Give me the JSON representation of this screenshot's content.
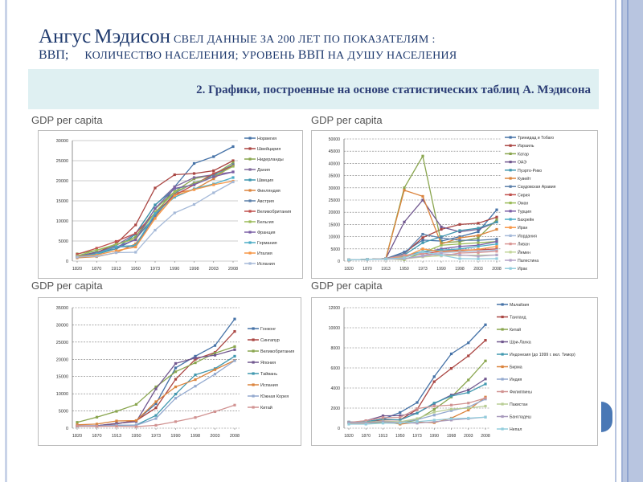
{
  "slide": {
    "title_big1": "Ангус",
    "title_big2": "Мэдисон",
    "title_rest": "свел данные за 200 лет по показателям :",
    "line2_a": "ВВП;",
    "line2_b": "количество населения; уровень",
    "line2_c": "ВВП",
    "line2_d": "на душу населения",
    "banner": "2. Графики, построенные на основе статистических таблиц А. Мэдисона"
  },
  "colors": {
    "title": "#1f3a6e",
    "banner_bg": "#dff0f2",
    "rail": "#b8c5e0",
    "accent": "#4a78b5"
  },
  "chart_data": [
    {
      "type": "line",
      "title": "GDP per capita",
      "categories": [
        "1820",
        "1870",
        "1913",
        "1950",
        "1973",
        "1990",
        "1998",
        "2003",
        "2008"
      ],
      "ylim": [
        0,
        30000
      ],
      "yticks": [
        0,
        5000,
        10000,
        15000,
        20000,
        25000,
        30000
      ],
      "legend": "right",
      "series": [
        {
          "name": "Норвегия",
          "color": "#4572A7",
          "values": [
            1100,
            2300,
            3000,
            5500,
            11200,
            18500,
            24300,
            26000,
            28500
          ]
        },
        {
          "name": "Швейцария",
          "color": "#AA4643",
          "values": [
            1300,
            2100,
            4300,
            9000,
            18200,
            21500,
            21800,
            22500,
            25000
          ]
        },
        {
          "name": "Нидерланды",
          "color": "#89A54E",
          "values": [
            1800,
            2700,
            4000,
            6000,
            13000,
            17300,
            20500,
            21500,
            24500
          ]
        },
        {
          "name": "Дания",
          "color": "#80699B",
          "values": [
            1300,
            2000,
            3900,
            6900,
            13900,
            18500,
            20800,
            21500,
            22200
          ]
        },
        {
          "name": "Швеция",
          "color": "#3D96AE",
          "values": [
            1200,
            1700,
            3100,
            6700,
            14000,
            18000,
            19000,
            21500,
            24000
          ]
        },
        {
          "name": "Финляндия",
          "color": "#DB843D",
          "values": [
            800,
            1100,
            2100,
            4300,
            11000,
            16900,
            17800,
            20500,
            24000
          ]
        },
        {
          "name": "Австрия",
          "color": "#5B7FA9",
          "values": [
            1200,
            2000,
            3500,
            3700,
            11300,
            16900,
            19500,
            21000,
            24000
          ]
        },
        {
          "name": "Великобритания",
          "color": "#C0504D",
          "values": [
            1700,
            3200,
            4900,
            6900,
            12000,
            16400,
            19000,
            21800,
            23700
          ]
        },
        {
          "name": "Бельгия",
          "color": "#9BBB59",
          "values": [
            1300,
            2700,
            4200,
            5500,
            12200,
            17200,
            19400,
            21000,
            23600
          ]
        },
        {
          "name": "Франция",
          "color": "#7B5FA6",
          "values": [
            1100,
            1900,
            3500,
            5300,
            13100,
            18100,
            19000,
            21000,
            22200
          ]
        },
        {
          "name": "Германия",
          "color": "#4BACC6",
          "values": [
            1100,
            1800,
            3600,
            3900,
            11900,
            15900,
            18000,
            19200,
            20800
          ]
        },
        {
          "name": "Италия",
          "color": "#F79646",
          "values": [
            1100,
            1500,
            2600,
            3500,
            10600,
            16300,
            17800,
            19000,
            19900
          ]
        },
        {
          "name": "Испания",
          "color": "#A5B9D8",
          "values": [
            1000,
            1200,
            2100,
            2200,
            7700,
            12000,
            14100,
            17000,
            19700
          ]
        }
      ]
    },
    {
      "type": "line",
      "title": "GDP per capita",
      "categories": [
        "1820",
        "1870",
        "1913",
        "1950",
        "1973",
        "1990",
        "1998",
        "2003",
        "2008"
      ],
      "ylim": [
        0,
        50000
      ],
      "yticks": [
        0,
        5000,
        10000,
        15000,
        20000,
        25000,
        30000,
        35000,
        40000,
        45000,
        50000
      ],
      "legend": "right",
      "series": [
        {
          "name": "Тринидад и Тобаго",
          "color": "#4572A7",
          "values": [
            500,
            700,
            1000,
            3700,
            8600,
            8200,
            10000,
            12000,
            21000
          ]
        },
        {
          "name": "Израиль",
          "color": "#AA4643",
          "values": [
            500,
            700,
            1000,
            3000,
            9600,
            13000,
            15000,
            15500,
            18000
          ]
        },
        {
          "name": "Катар",
          "color": "#89A54E",
          "values": [
            500,
            700,
            1000,
            30000,
            43000,
            7500,
            8000,
            9500,
            17000
          ]
        },
        {
          "name": "ОАЭ",
          "color": "#71588F",
          "values": [
            500,
            700,
            1000,
            16000,
            25000,
            14000,
            12000,
            13000,
            16000
          ]
        },
        {
          "name": "Пуэрто-Рико",
          "color": "#4198AF",
          "values": [
            500,
            700,
            1000,
            2500,
            7500,
            10000,
            12500,
            13500,
            16000
          ]
        },
        {
          "name": "Кувейт",
          "color": "#DB843D",
          "values": [
            500,
            700,
            1000,
            29000,
            26500,
            7000,
            9500,
            10500,
            13000
          ]
        },
        {
          "name": "Саудовская Аравия",
          "color": "#5B7FA9",
          "values": [
            500,
            700,
            1000,
            3000,
            11000,
            9500,
            8500,
            8500,
            9000
          ]
        },
        {
          "name": "Сирия",
          "color": "#C0504D",
          "values": [
            500,
            700,
            1000,
            2000,
            3000,
            4000,
            4500,
            4600,
            5000
          ]
        },
        {
          "name": "Оман",
          "color": "#9BBB59",
          "values": [
            500,
            700,
            1000,
            600,
            3500,
            6500,
            7000,
            7500,
            8000
          ]
        },
        {
          "name": "Турция",
          "color": "#7B5FA6",
          "values": [
            500,
            700,
            1000,
            1600,
            3500,
            5000,
            6000,
            6500,
            8000
          ]
        },
        {
          "name": "Бахрейн",
          "color": "#4BACC6",
          "values": [
            500,
            700,
            1000,
            2100,
            4000,
            4500,
            5000,
            6000,
            7000
          ]
        },
        {
          "name": "Иран",
          "color": "#F79646",
          "values": [
            500,
            700,
            1000,
            1700,
            5000,
            3800,
            4200,
            4800,
            6000
          ]
        },
        {
          "name": "Иордания",
          "color": "#A5B9D8",
          "values": [
            500,
            700,
            1000,
            1000,
            2300,
            3500,
            3800,
            4000,
            4500
          ]
        },
        {
          "name": "Ливан",
          "color": "#D99694",
          "values": [
            500,
            700,
            1000,
            2400,
            3200,
            2100,
            3300,
            3500,
            4000
          ]
        },
        {
          "name": "Йемен",
          "color": "#C3D69B",
          "values": [
            500,
            700,
            800,
            900,
            1700,
            2200,
            2300,
            2400,
            2500
          ]
        },
        {
          "name": "Палестина",
          "color": "#B3A2C7",
          "values": [
            500,
            700,
            800,
            1000,
            2000,
            3000,
            2500,
            2000,
            2500
          ]
        },
        {
          "name": "Ирак",
          "color": "#93CDDD",
          "values": [
            500,
            700,
            900,
            1400,
            3800,
            2400,
            1000,
            900,
            1000
          ]
        }
      ]
    },
    {
      "type": "line",
      "title": "GDP per capita",
      "categories": [
        "1820",
        "1870",
        "1913",
        "1950",
        "1973",
        "1990",
        "1998",
        "2003",
        "2008"
      ],
      "ylim": [
        0,
        35000
      ],
      "yticks": [
        0,
        5000,
        10000,
        15000,
        20000,
        25000,
        30000,
        35000
      ],
      "legend": "right",
      "series": [
        {
          "name": "Гонконг",
          "color": "#4572A7",
          "values": [
            600,
            700,
            1300,
            2200,
            7100,
            17500,
            20900,
            24000,
            31700
          ]
        },
        {
          "name": "Сингапур",
          "color": "#AA4643",
          "values": [
            600,
            700,
            1300,
            2200,
            5900,
            14200,
            20000,
            22000,
            28100
          ]
        },
        {
          "name": "Великобритания",
          "color": "#89A54E",
          "values": [
            1700,
            3200,
            4900,
            6900,
            12000,
            16400,
            19000,
            21800,
            23700
          ]
        },
        {
          "name": "Япония",
          "color": "#71588F",
          "values": [
            700,
            700,
            1400,
            1900,
            11400,
            18800,
            20400,
            21200,
            22800
          ]
        },
        {
          "name": "Тайвань",
          "color": "#4198AF",
          "values": [
            550,
            550,
            750,
            900,
            3700,
            9900,
            15500,
            17300,
            20900
          ]
        },
        {
          "name": "Испания",
          "color": "#DB843D",
          "values": [
            1000,
            1200,
            2100,
            2200,
            7700,
            12000,
            14100,
            17000,
            19700
          ]
        },
        {
          "name": "Южная Корея",
          "color": "#93A9CF",
          "values": [
            600,
            600,
            900,
            850,
            2800,
            8700,
            12200,
            15700,
            19600
          ]
        },
        {
          "name": "Китай",
          "color": "#D19392",
          "values": [
            600,
            530,
            550,
            450,
            840,
            1900,
            3100,
            4800,
            6700
          ]
        }
      ]
    },
    {
      "type": "line",
      "title": "GDP per capita",
      "categories": [
        "1820",
        "1870",
        "1913",
        "1950",
        "1973",
        "1990",
        "1998",
        "2003",
        "2008"
      ],
      "ylim": [
        0,
        12000
      ],
      "yticks": [
        0,
        2000,
        4000,
        6000,
        8000,
        10000,
        12000
      ],
      "legend": "right",
      "series": [
        {
          "name": "Малайзия",
          "color": "#4572A7",
          "values": [
            600,
            660,
            900,
            1560,
            2560,
            5130,
            7400,
            8500,
            10300
          ]
        },
        {
          "name": "Таиланд",
          "color": "#AA4643",
          "values": [
            570,
            610,
            840,
            820,
            1870,
            4630,
            5950,
            7200,
            8750
          ]
        },
        {
          "name": "Китай",
          "color": "#89A54E",
          "values": [
            600,
            530,
            550,
            450,
            840,
            1870,
            3100,
            4800,
            6700
          ]
        },
        {
          "name": "Шри-Ланка",
          "color": "#71588F",
          "values": [
            550,
            740,
            1230,
            1250,
            1500,
            2450,
            3300,
            3800,
            4900
          ]
        },
        {
          "name": "Индонезия (до 1999 г. вкл. Тимор)",
          "color": "#4198AF",
          "values": [
            610,
            650,
            900,
            820,
            1500,
            2500,
            3200,
            3550,
            4400
          ]
        },
        {
          "name": "Бирма",
          "color": "#DB843D",
          "values": [
            500,
            500,
            700,
            400,
            600,
            550,
            1000,
            1800,
            3100
          ]
        },
        {
          "name": "Индия",
          "color": "#93A9CF",
          "values": [
            530,
            530,
            670,
            620,
            850,
            1300,
            1750,
            2100,
            2900
          ]
        },
        {
          "name": "Филиппины",
          "color": "#D19392",
          "values": [
            580,
            750,
            1050,
            1070,
            1950,
            2200,
            2300,
            2500,
            3000
          ]
        },
        {
          "name": "Пакистан",
          "color": "#B9CD96",
          "values": [
            550,
            600,
            700,
            640,
            950,
            1600,
            1900,
            2000,
            2200
          ]
        },
        {
          "name": "Бангладеш",
          "color": "#A99BBD",
          "values": [
            550,
            550,
            650,
            540,
            500,
            640,
            810,
            950,
            1100
          ]
        },
        {
          "name": "Непал",
          "color": "#92CDDC",
          "values": [
            400,
            400,
            500,
            500,
            650,
            800,
            950,
            1000,
            1100
          ]
        }
      ]
    }
  ]
}
